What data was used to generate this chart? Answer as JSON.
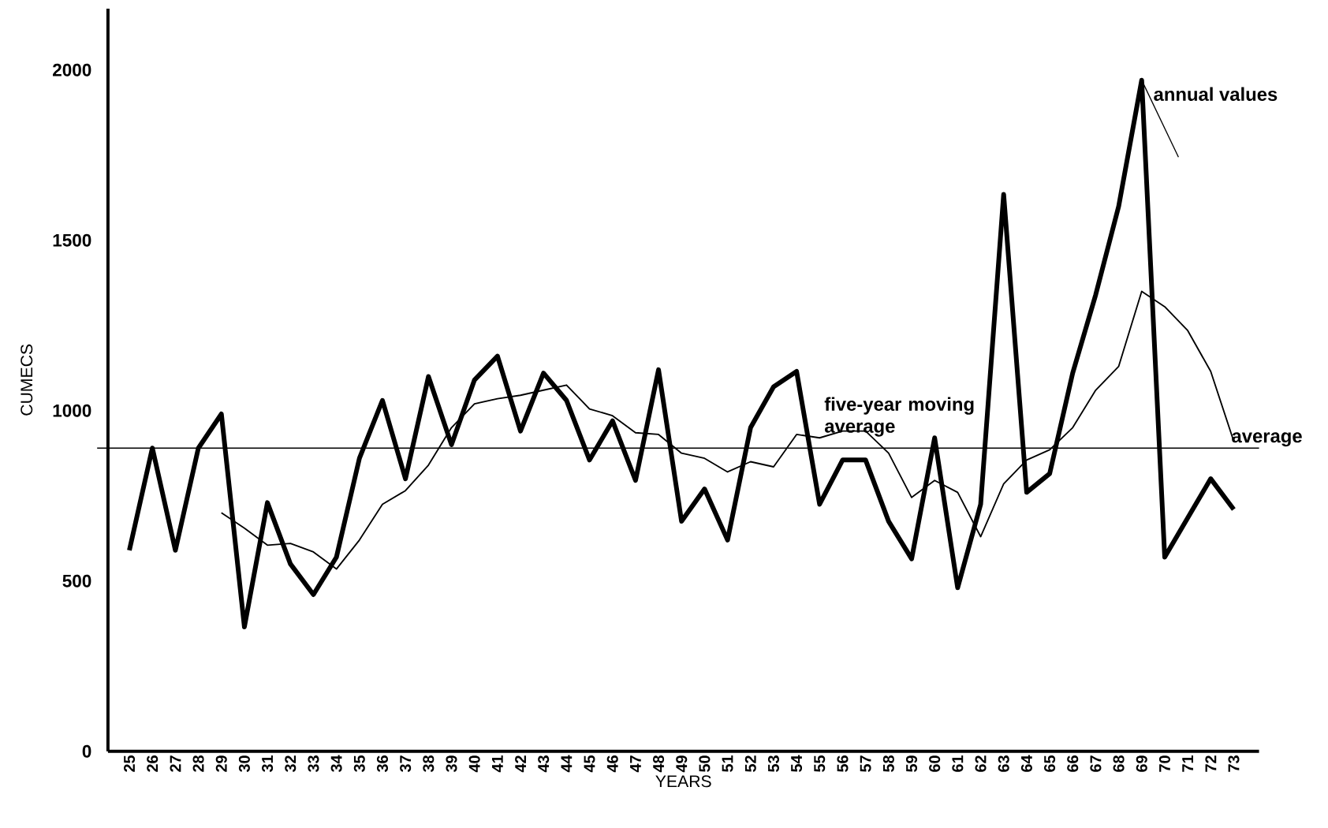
{
  "chart_data": {
    "type": "line",
    "xlabel": "YEARS",
    "ylabel": "CUMECS",
    "categories": [
      "25",
      "26",
      "27",
      "28",
      "29",
      "30",
      "31",
      "32",
      "33",
      "34",
      "35",
      "36",
      "37",
      "38",
      "39",
      "40",
      "41",
      "42",
      "43",
      "44",
      "45",
      "46",
      "47",
      "48",
      "49",
      "50",
      "51",
      "52",
      "53",
      "54",
      "55",
      "56",
      "57",
      "58",
      "59",
      "60",
      "61",
      "62",
      "63",
      "64",
      "65",
      "66",
      "67",
      "68",
      "69",
      "70",
      "71",
      "72",
      "73"
    ],
    "ylim": [
      0,
      2180
    ],
    "yticks": [
      0,
      500,
      1000,
      1500,
      2000
    ],
    "grid": false,
    "line_style": "solid",
    "marker": "none",
    "series": [
      {
        "name": "annual values",
        "color": "#000000",
        "values": [
          590,
          890,
          590,
          890,
          990,
          365,
          730,
          550,
          460,
          570,
          860,
          1030,
          800,
          1100,
          900,
          1090,
          1160,
          940,
          1110,
          1030,
          855,
          970,
          795,
          1120,
          675,
          770,
          620,
          950,
          1070,
          1115,
          725,
          855,
          855,
          675,
          565,
          920,
          480,
          725,
          1635,
          760,
          815,
          1110,
          1340,
          1600,
          1970,
          570,
          685,
          800,
          710
        ]
      },
      {
        "name": "five-year moving average",
        "color": "#000000",
        "values": [
          null,
          null,
          null,
          null,
          700,
          655,
          605,
          610,
          585,
          535,
          620,
          725,
          765,
          840,
          950,
          1020,
          1035,
          1045,
          1060,
          1075,
          1005,
          985,
          935,
          930,
          875,
          860,
          820,
          850,
          835,
          930,
          920,
          940,
          940,
          875,
          745,
          795,
          760,
          630,
          785,
          855,
          885,
          950,
          1060,
          1130,
          1350,
          1305,
          1235,
          1115,
          910
        ]
      }
    ],
    "ref_lines": [
      {
        "axis": "y",
        "value": 890,
        "label": "average",
        "color": "#000000"
      }
    ]
  }
}
